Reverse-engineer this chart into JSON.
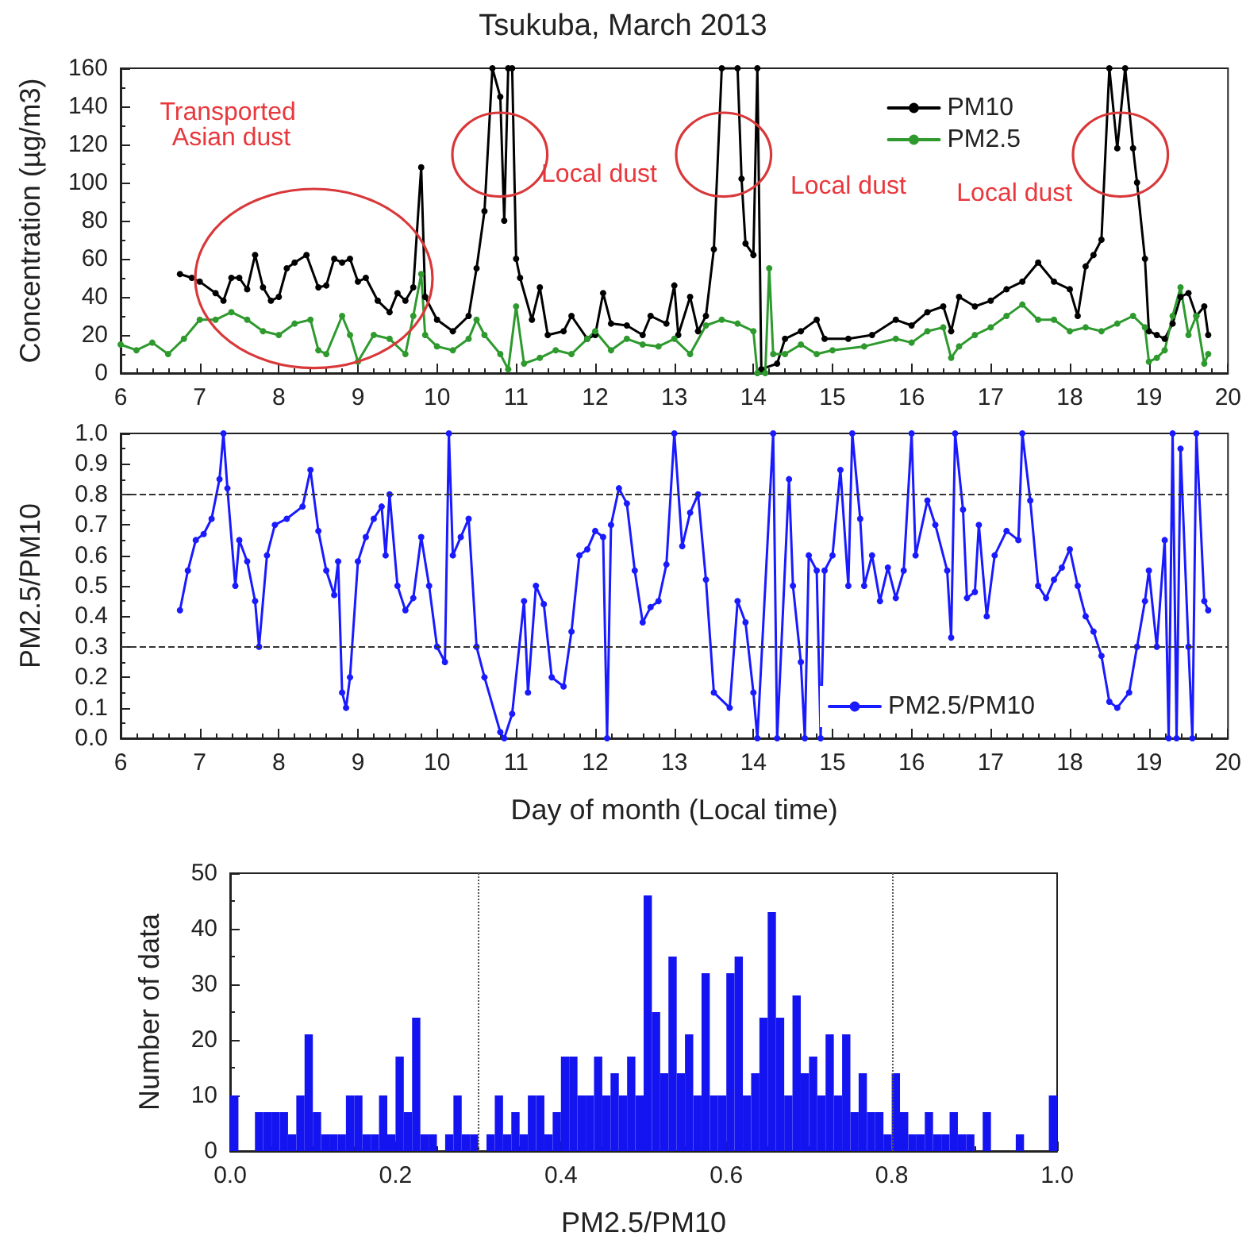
{
  "chart_data": [
    {
      "type": "line",
      "title": "Tsukuba, March 2013",
      "ylabel": "Concentration (µg/m3)",
      "xlim": [
        6,
        20
      ],
      "xticks": [
        6,
        7,
        8,
        9,
        10,
        11,
        12,
        13,
        14,
        15,
        16,
        17,
        18,
        19,
        20
      ],
      "ylim": [
        0,
        160
      ],
      "yticks": [
        0,
        20,
        40,
        60,
        80,
        100,
        120,
        140,
        160
      ],
      "grid": false,
      "legend": "top right",
      "marker": "circle",
      "line_style": "solid",
      "annotations": [
        "Transported Asian dust",
        "Local dust",
        "Local dust",
        "Local dust"
      ],
      "series": [
        {
          "name": "PM10",
          "color": "#000000",
          "x": [
            6.75,
            6.9,
            7.0,
            7.2,
            7.3,
            7.4,
            7.5,
            7.6,
            7.7,
            7.8,
            7.9,
            8.0,
            8.1,
            8.2,
            8.35,
            8.5,
            8.6,
            8.7,
            8.8,
            8.9,
            9.0,
            9.1,
            9.25,
            9.4,
            9.5,
            9.6,
            9.7,
            9.8,
            9.85,
            10.0,
            10.2,
            10.4,
            10.5,
            10.6,
            10.7,
            10.8,
            10.85,
            10.9,
            10.95,
            11.0,
            11.05,
            11.2,
            11.3,
            11.4,
            11.6,
            11.7,
            11.9,
            12.0,
            12.1,
            12.2,
            12.4,
            12.6,
            12.7,
            12.9,
            13.0,
            13.05,
            13.2,
            13.3,
            13.4,
            13.5,
            13.6,
            13.8,
            13.85,
            13.9,
            14.0,
            14.05,
            14.1,
            14.3,
            14.4,
            14.6,
            14.8,
            14.9,
            15.2,
            15.5,
            15.8,
            16.0,
            16.2,
            16.4,
            16.5,
            16.6,
            16.8,
            17.0,
            17.2,
            17.4,
            17.6,
            17.8,
            18.0,
            18.1,
            18.2,
            18.3,
            18.4,
            18.5,
            18.6,
            18.7,
            18.8,
            18.85,
            18.95,
            19.0,
            19.1,
            19.2,
            19.3,
            19.4,
            19.5,
            19.6,
            19.7,
            19.75
          ],
          "values": [
            52,
            50,
            48,
            42,
            38,
            50,
            50,
            44,
            62,
            45,
            38,
            40,
            55,
            58,
            62,
            45,
            46,
            60,
            58,
            60,
            48,
            50,
            38,
            32,
            42,
            38,
            45,
            108,
            40,
            28,
            22,
            30,
            55,
            85,
            160,
            145,
            80,
            160,
            160,
            60,
            50,
            28,
            45,
            20,
            22,
            30,
            18,
            20,
            42,
            26,
            25,
            20,
            30,
            26,
            46,
            20,
            40,
            22,
            30,
            65,
            160,
            160,
            102,
            68,
            62,
            160,
            2,
            5,
            18,
            22,
            28,
            18,
            18,
            20,
            28,
            25,
            32,
            35,
            22,
            40,
            35,
            38,
            44,
            48,
            58,
            48,
            44,
            30,
            56,
            62,
            70,
            160,
            118,
            160,
            118,
            100,
            60,
            22,
            20,
            18,
            26,
            40,
            42,
            30,
            35,
            20
          ]
        },
        {
          "name": "PM2.5",
          "color": "#2e9a2e",
          "x": [
            6.0,
            6.2,
            6.4,
            6.6,
            6.8,
            7.0,
            7.2,
            7.4,
            7.6,
            7.8,
            8.0,
            8.2,
            8.4,
            8.5,
            8.6,
            8.8,
            8.9,
            9.0,
            9.2,
            9.4,
            9.6,
            9.7,
            9.8,
            9.85,
            10.0,
            10.2,
            10.4,
            10.5,
            10.6,
            10.8,
            10.9,
            11.0,
            11.1,
            11.3,
            11.5,
            11.7,
            11.9,
            12.0,
            12.2,
            12.4,
            12.6,
            12.8,
            13.0,
            13.2,
            13.4,
            13.6,
            13.8,
            14.0,
            14.05,
            14.15,
            14.2,
            14.25,
            14.4,
            14.6,
            14.8,
            15.0,
            15.4,
            15.8,
            16.0,
            16.2,
            16.4,
            16.5,
            16.6,
            16.8,
            17.0,
            17.2,
            17.4,
            17.6,
            17.8,
            18.0,
            18.2,
            18.4,
            18.6,
            18.8,
            18.95,
            19.0,
            19.1,
            19.2,
            19.3,
            19.4,
            19.5,
            19.6,
            19.7,
            19.75
          ],
          "values": [
            15,
            12,
            16,
            10,
            18,
            28,
            28,
            32,
            28,
            22,
            20,
            26,
            28,
            12,
            10,
            30,
            20,
            6,
            20,
            18,
            10,
            30,
            52,
            20,
            14,
            12,
            18,
            28,
            20,
            10,
            2,
            35,
            5,
            8,
            12,
            10,
            18,
            22,
            12,
            18,
            15,
            14,
            18,
            10,
            25,
            28,
            26,
            22,
            0,
            0,
            55,
            10,
            10,
            15,
            10,
            12,
            14,
            18,
            16,
            22,
            24,
            8,
            14,
            20,
            24,
            30,
            36,
            28,
            28,
            22,
            24,
            22,
            26,
            30,
            24,
            6,
            8,
            12,
            30,
            45,
            20,
            30,
            5,
            10
          ]
        }
      ]
    },
    {
      "type": "line",
      "xlabel": "Day of month (Local time)",
      "ylabel": "PM2.5/PM10",
      "xlim": [
        6,
        20
      ],
      "xticks": [
        6,
        7,
        8,
        9,
        10,
        11,
        12,
        13,
        14,
        15,
        16,
        17,
        18,
        19,
        20
      ],
      "ylim": [
        0,
        1
      ],
      "yticks": [
        {
          "value": 0,
          "label": "0.0"
        },
        {
          "value": 0.1,
          "label": "0.1"
        },
        {
          "value": 0.2,
          "label": "0.2"
        },
        {
          "value": 0.3,
          "label": "0.3"
        },
        {
          "value": 0.4,
          "label": "0.4"
        },
        {
          "value": 0.5,
          "label": "0.5"
        },
        {
          "value": 0.6,
          "label": "0.6"
        },
        {
          "value": 0.7,
          "label": "0.7"
        },
        {
          "value": 0.8,
          "label": "0.8"
        },
        {
          "value": 0.9,
          "label": "0.9"
        },
        {
          "value": 1,
          "label": "1.0"
        }
      ],
      "grid": false,
      "legend": "bottom right",
      "marker": "circle",
      "line_style": "solid",
      "ref_lines": [
        {
          "axis": "y",
          "value": 0.3,
          "color": "#333333",
          "line_style": "dashed"
        },
        {
          "axis": "y",
          "value": 0.8,
          "color": "#333333",
          "line_style": "dashed"
        }
      ],
      "series": [
        {
          "name": "PM2.5/PM10",
          "color": "#1a1aff",
          "x": [
            6.75,
            6.85,
            6.95,
            7.05,
            7.15,
            7.25,
            7.3,
            7.35,
            7.45,
            7.5,
            7.6,
            7.7,
            7.75,
            7.85,
            7.95,
            8.1,
            8.3,
            8.4,
            8.5,
            8.6,
            8.7,
            8.75,
            8.8,
            8.85,
            8.9,
            9.0,
            9.1,
            9.2,
            9.3,
            9.35,
            9.4,
            9.5,
            9.6,
            9.7,
            9.8,
            9.9,
            10.0,
            10.1,
            10.15,
            10.2,
            10.3,
            10.4,
            10.5,
            10.6,
            10.8,
            10.85,
            10.95,
            11.1,
            11.15,
            11.25,
            11.35,
            11.45,
            11.6,
            11.7,
            11.8,
            11.9,
            12.0,
            12.1,
            12.15,
            12.2,
            12.3,
            12.4,
            12.5,
            12.6,
            12.7,
            12.8,
            12.9,
            13.0,
            13.1,
            13.2,
            13.3,
            13.4,
            13.5,
            13.7,
            13.8,
            13.9,
            14.0,
            14.05,
            14.25,
            14.3,
            14.45,
            14.5,
            14.6,
            14.65,
            14.7,
            14.8,
            14.85,
            14.9,
            15.0,
            15.1,
            15.2,
            15.25,
            15.35,
            15.4,
            15.5,
            15.6,
            15.7,
            15.8,
            15.9,
            16.0,
            16.05,
            16.2,
            16.3,
            16.45,
            16.5,
            16.55,
            16.65,
            16.7,
            16.8,
            16.85,
            16.95,
            17.05,
            17.2,
            17.35,
            17.4,
            17.5,
            17.6,
            17.7,
            17.8,
            17.9,
            18.0,
            18.1,
            18.2,
            18.3,
            18.4,
            18.5,
            18.6,
            18.75,
            18.85,
            18.95,
            19.0,
            19.1,
            19.2,
            19.25,
            19.3,
            19.35,
            19.4,
            19.5,
            19.55,
            19.6,
            19.7,
            19.75
          ],
          "values": [
            0.42,
            0.55,
            0.65,
            0.67,
            0.72,
            0.85,
            1.0,
            0.82,
            0.5,
            0.65,
            0.58,
            0.45,
            0.3,
            0.6,
            0.7,
            0.72,
            0.76,
            0.88,
            0.68,
            0.55,
            0.47,
            0.58,
            0.15,
            0.1,
            0.2,
            0.58,
            0.66,
            0.72,
            0.76,
            0.6,
            0.8,
            0.5,
            0.42,
            0.46,
            0.66,
            0.5,
            0.3,
            0.25,
            1.0,
            0.6,
            0.66,
            0.72,
            0.3,
            0.2,
            0.02,
            0.0,
            0.08,
            0.45,
            0.15,
            0.5,
            0.44,
            0.2,
            0.17,
            0.35,
            0.6,
            0.62,
            0.68,
            0.66,
            0.0,
            0.7,
            0.82,
            0.77,
            0.55,
            0.38,
            0.43,
            0.45,
            0.57,
            1.0,
            0.63,
            0.74,
            0.8,
            0.52,
            0.15,
            0.1,
            0.45,
            0.38,
            0.15,
            0.0,
            1.0,
            0.0,
            0.85,
            0.5,
            0.25,
            0.0,
            0.6,
            0.55,
            0.0,
            0.55,
            0.6,
            0.88,
            0.5,
            1.0,
            0.72,
            0.5,
            0.6,
            0.45,
            0.56,
            0.46,
            0.55,
            1.0,
            0.6,
            0.78,
            0.7,
            0.55,
            0.33,
            1.0,
            0.75,
            0.46,
            0.48,
            0.7,
            0.4,
            0.6,
            0.68,
            0.65,
            1.0,
            0.78,
            0.5,
            0.46,
            0.52,
            0.56,
            0.62,
            0.5,
            0.4,
            0.35,
            0.27,
            0.12,
            0.1,
            0.15,
            0.3,
            0.45,
            0.55,
            0.3,
            0.65,
            0.0,
            1.0,
            0.0,
            0.95,
            0.3,
            0.0,
            1.0,
            0.45,
            0.42
          ]
        }
      ]
    },
    {
      "type": "histogram",
      "xlabel": "PM2.5/PM10",
      "ylabel": "Number of data",
      "color": "#1414f0",
      "xlim": [
        0,
        1
      ],
      "xticks": [
        {
          "value": 0,
          "label": "0.0"
        },
        {
          "value": 0.2,
          "label": "0.2"
        },
        {
          "value": 0.4,
          "label": "0.4"
        },
        {
          "value": 0.6,
          "label": "0.6"
        },
        {
          "value": 0.8,
          "label": "0.8"
        },
        {
          "value": 1,
          "label": "1.0"
        }
      ],
      "ylim": [
        0,
        50
      ],
      "yticks": [
        0,
        10,
        20,
        30,
        40,
        50
      ],
      "grid": false,
      "ref_lines": [
        {
          "axis": "x",
          "value": 0.3,
          "color": "#555555",
          "line_style": "dotted"
        },
        {
          "axis": "x",
          "value": 0.8,
          "color": "#555555",
          "line_style": "dotted"
        }
      ],
      "bins": [
        0,
        0.01,
        0.02,
        0.03,
        0.04,
        0.05,
        0.06,
        0.07,
        0.08,
        0.09,
        0.1,
        0.11,
        0.12,
        0.13,
        0.14,
        0.15,
        0.16,
        0.17,
        0.18,
        0.19,
        0.2,
        0.21,
        0.22,
        0.23,
        0.24,
        0.25,
        0.26,
        0.27,
        0.28,
        0.29,
        0.3,
        0.31,
        0.32,
        0.33,
        0.34,
        0.35,
        0.36,
        0.37,
        0.38,
        0.39,
        0.4,
        0.41,
        0.42,
        0.43,
        0.44,
        0.45,
        0.46,
        0.47,
        0.48,
        0.49,
        0.5,
        0.51,
        0.52,
        0.53,
        0.54,
        0.55,
        0.56,
        0.57,
        0.58,
        0.59,
        0.6,
        0.61,
        0.62,
        0.63,
        0.64,
        0.65,
        0.66,
        0.67,
        0.68,
        0.69,
        0.7,
        0.71,
        0.72,
        0.73,
        0.74,
        0.75,
        0.76,
        0.77,
        0.78,
        0.79,
        0.8,
        0.81,
        0.82,
        0.83,
        0.84,
        0.85,
        0.86,
        0.87,
        0.88,
        0.89,
        0.9,
        0.91,
        0.92,
        0.93,
        0.94,
        0.95,
        0.96,
        0.97,
        0.98,
        0.99,
        1
      ],
      "values": [
        10,
        0,
        0,
        7,
        7,
        7,
        7,
        3,
        10,
        21,
        7,
        3,
        3,
        3,
        10,
        10,
        3,
        3,
        10,
        3,
        17,
        7,
        24,
        3,
        3,
        0,
        3,
        10,
        3,
        3,
        0,
        3,
        10,
        3,
        7,
        3,
        10,
        10,
        3,
        7,
        17,
        17,
        10,
        10,
        17,
        10,
        14,
        10,
        17,
        10,
        46,
        25,
        14,
        35,
        14,
        21,
        10,
        32,
        10,
        10,
        32,
        35,
        10,
        14,
        24,
        43,
        24,
        10,
        28,
        14,
        17,
        10,
        21,
        10,
        21,
        7,
        14,
        7,
        7,
        3,
        14,
        7,
        3,
        3,
        7,
        3,
        3,
        7,
        3,
        3,
        0,
        7,
        0,
        0,
        0,
        3,
        0,
        0,
        0,
        10
      ]
    }
  ]
}
